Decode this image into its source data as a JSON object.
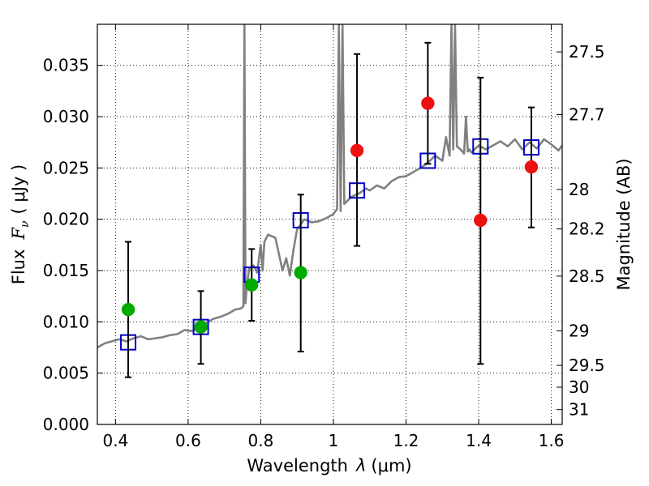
{
  "chart_data": {
    "type": "scatter",
    "xlabel_text": "Wavelength",
    "xlabel_symbol": "λ",
    "xlabel_unit": "(μm)",
    "ylabel_text": "Flux",
    "ylabel_symbol": "F",
    "ylabel_subscript": "ν",
    "ylabel_unit": "( μJy )",
    "y2label": "Magnitude (AB)",
    "xlim": [
      0.35,
      1.63
    ],
    "ylim": [
      0.0,
      0.039
    ],
    "grid": true,
    "x_ticks": [
      {
        "value": 0.4,
        "label": "0.4"
      },
      {
        "value": 0.6,
        "label": "0.6"
      },
      {
        "value": 0.8,
        "label": "0.8"
      },
      {
        "value": 1.0,
        "label": "1"
      },
      {
        "value": 1.2,
        "label": "1.2"
      },
      {
        "value": 1.4,
        "label": "1.4"
      },
      {
        "value": 1.6,
        "label": "1.6"
      }
    ],
    "y_ticks": [
      {
        "value": 0.0,
        "label": "0.000"
      },
      {
        "value": 0.005,
        "label": "0.005"
      },
      {
        "value": 0.01,
        "label": "0.010"
      },
      {
        "value": 0.015,
        "label": "0.015"
      },
      {
        "value": 0.02,
        "label": "0.020"
      },
      {
        "value": 0.025,
        "label": "0.025"
      },
      {
        "value": 0.03,
        "label": "0.030"
      },
      {
        "value": 0.035,
        "label": "0.035"
      }
    ],
    "y2_ticks": [
      {
        "mag": 27.5,
        "label": "27.5"
      },
      {
        "mag": 27.7,
        "label": "27.7"
      },
      {
        "mag": 28.0,
        "label": "28"
      },
      {
        "mag": 28.2,
        "label": "28.2"
      },
      {
        "mag": 28.5,
        "label": "28.5"
      },
      {
        "mag": 29.0,
        "label": "29"
      },
      {
        "mag": 29.5,
        "label": "29.5"
      },
      {
        "mag": 30.0,
        "label": "30"
      },
      {
        "mag": 31.0,
        "label": "31"
      }
    ],
    "observed": [
      {
        "x": 0.435,
        "y": 0.0112,
        "yerr_low": 0.0046,
        "yerr_high": 0.0178,
        "color": "#00aa00"
      },
      {
        "x": 0.635,
        "y": 0.0095,
        "yerr_low": 0.0059,
        "yerr_high": 0.013,
        "color": "#00aa00"
      },
      {
        "x": 0.775,
        "y": 0.0136,
        "yerr_low": 0.0101,
        "yerr_high": 0.0171,
        "color": "#00aa00"
      },
      {
        "x": 0.91,
        "y": 0.0148,
        "yerr_low": 0.0071,
        "yerr_high": 0.0224,
        "color": "#00aa00"
      },
      {
        "x": 1.065,
        "y": 0.0267,
        "yerr_low": 0.0174,
        "yerr_high": 0.0361,
        "color": "#ee1111"
      },
      {
        "x": 1.26,
        "y": 0.0313,
        "yerr_low": 0.0254,
        "yerr_high": 0.0372,
        "color": "#ee1111"
      },
      {
        "x": 1.405,
        "y": 0.0199,
        "yerr_low": 0.0059,
        "yerr_high": 0.0338,
        "color": "#ee1111"
      },
      {
        "x": 1.545,
        "y": 0.0251,
        "yerr_low": 0.0192,
        "yerr_high": 0.0309,
        "color": "#ee1111"
      }
    ],
    "model_synthetic": {
      "x": [
        0.435,
        0.635,
        0.775,
        0.91,
        1.065,
        1.26,
        1.405,
        1.545
      ],
      "y": [
        0.008,
        0.0095,
        0.0146,
        0.0199,
        0.0228,
        0.0257,
        0.0271,
        0.027
      ],
      "color": "#0000cc"
    },
    "spectrum": {
      "color": "#808080",
      "x": [
        0.35,
        0.37,
        0.39,
        0.41,
        0.43,
        0.45,
        0.47,
        0.49,
        0.51,
        0.53,
        0.55,
        0.57,
        0.59,
        0.61,
        0.63,
        0.65,
        0.67,
        0.69,
        0.71,
        0.73,
        0.745,
        0.752,
        0.755,
        0.758,
        0.762,
        0.768,
        0.78,
        0.79,
        0.8,
        0.805,
        0.81,
        0.82,
        0.84,
        0.86,
        0.87,
        0.88,
        0.89,
        0.9,
        0.92,
        0.94,
        0.96,
        0.98,
        1.0,
        1.01,
        1.015,
        1.02,
        1.025,
        1.03,
        1.05,
        1.07,
        1.09,
        1.1,
        1.12,
        1.14,
        1.16,
        1.18,
        1.2,
        1.22,
        1.24,
        1.26,
        1.28,
        1.3,
        1.31,
        1.32,
        1.325,
        1.33,
        1.335,
        1.34,
        1.35,
        1.36,
        1.365,
        1.37,
        1.375,
        1.38,
        1.4,
        1.42,
        1.44,
        1.46,
        1.48,
        1.5,
        1.52,
        1.54,
        1.56,
        1.58,
        1.6,
        1.62,
        1.63
      ],
      "y": [
        0.0075,
        0.0079,
        0.0081,
        0.0083,
        0.0081,
        0.0084,
        0.0086,
        0.0083,
        0.0084,
        0.0085,
        0.0087,
        0.0088,
        0.0092,
        0.0091,
        0.0094,
        0.0099,
        0.0103,
        0.0105,
        0.0108,
        0.0112,
        0.0113,
        0.0115,
        0.039,
        0.0118,
        0.0136,
        0.0152,
        0.0155,
        0.0148,
        0.0175,
        0.015,
        0.0178,
        0.0185,
        0.0182,
        0.015,
        0.0162,
        0.0145,
        0.017,
        0.019,
        0.02,
        0.0197,
        0.0198,
        0.0201,
        0.0205,
        0.021,
        0.039,
        0.0208,
        0.039,
        0.0215,
        0.0222,
        0.0225,
        0.023,
        0.0228,
        0.0233,
        0.023,
        0.0237,
        0.0241,
        0.0242,
        0.0246,
        0.025,
        0.0255,
        0.0262,
        0.0257,
        0.028,
        0.0262,
        0.039,
        0.0268,
        0.039,
        0.0271,
        0.0268,
        0.0264,
        0.03,
        0.0266,
        0.0268,
        0.0265,
        0.0272,
        0.0268,
        0.0272,
        0.0276,
        0.0271,
        0.0278,
        0.0268,
        0.0275,
        0.0269,
        0.0278,
        0.0273,
        0.0267,
        0.0272
      ]
    }
  }
}
